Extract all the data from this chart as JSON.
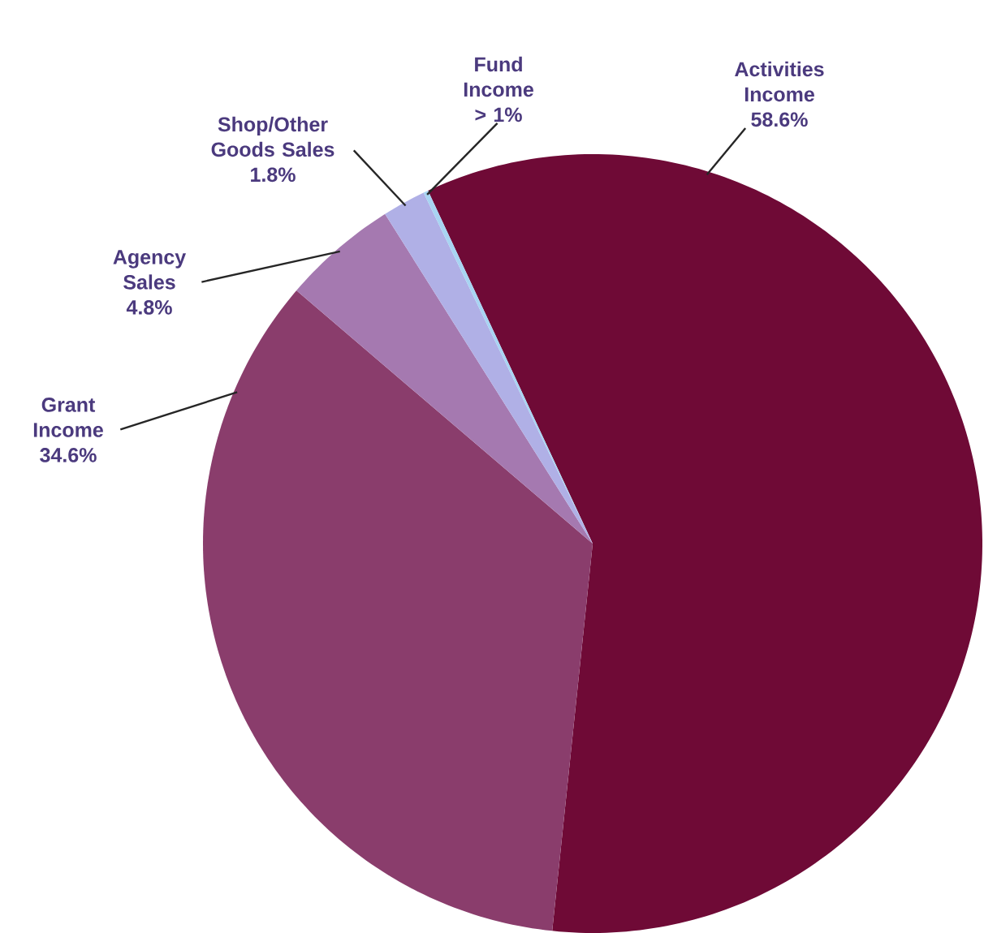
{
  "chart_data": {
    "type": "pie",
    "categories": [
      "Activities Income",
      "Grant Income",
      "Agency Sales",
      "Shop/Other Goods Sales",
      "Fund Income"
    ],
    "values": [
      58.6,
      34.6,
      4.8,
      1.8,
      0.2
    ],
    "value_labels": [
      "58.6%",
      "34.6%",
      "4.8%",
      "1.8%",
      "> 1%"
    ],
    "colors": [
      "#6f0a36",
      "#8a3d6c",
      "#a579b0",
      "#b0b0e6",
      "#a8d4f2"
    ]
  }
}
